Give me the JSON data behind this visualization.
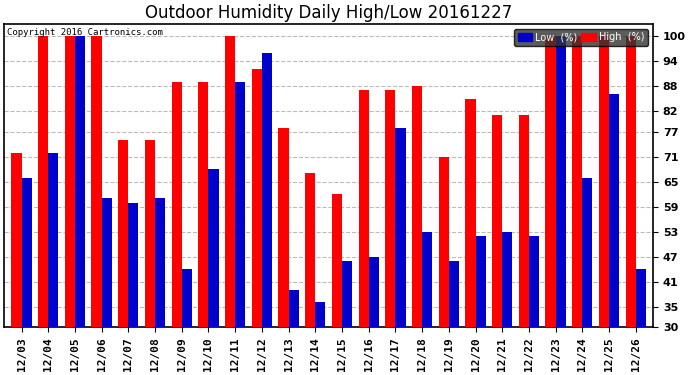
{
  "title": "Outdoor Humidity Daily High/Low 20161227",
  "copyright": "Copyright 2016 Cartronics.com",
  "categories": [
    "12/03",
    "12/04",
    "12/05",
    "12/06",
    "12/07",
    "12/08",
    "12/09",
    "12/10",
    "12/11",
    "12/12",
    "12/13",
    "12/14",
    "12/15",
    "12/16",
    "12/17",
    "12/18",
    "12/19",
    "12/20",
    "12/21",
    "12/22",
    "12/23",
    "12/24",
    "12/25",
    "12/26"
  ],
  "high": [
    72,
    100,
    100,
    100,
    75,
    75,
    89,
    89,
    100,
    92,
    78,
    67,
    62,
    87,
    87,
    88,
    71,
    85,
    81,
    81,
    100,
    100,
    100,
    100
  ],
  "low": [
    66,
    72,
    100,
    61,
    60,
    61,
    44,
    68,
    89,
    96,
    39,
    36,
    46,
    47,
    78,
    53,
    46,
    52,
    53,
    52,
    100,
    66,
    86,
    44
  ],
  "high_color": "#ff0000",
  "low_color": "#0000cc",
  "background_color": "#ffffff",
  "grid_color": "#bbbbbb",
  "ylim_min": 30,
  "ylim_max": 103,
  "bar_bottom": 30,
  "yticks": [
    30,
    35,
    41,
    47,
    53,
    59,
    65,
    71,
    77,
    82,
    88,
    94,
    100
  ],
  "bar_width": 0.38,
  "title_fontsize": 12,
  "tick_fontsize": 8,
  "legend_low_label": "Low  (%)",
  "legend_high_label": "High  (%)"
}
